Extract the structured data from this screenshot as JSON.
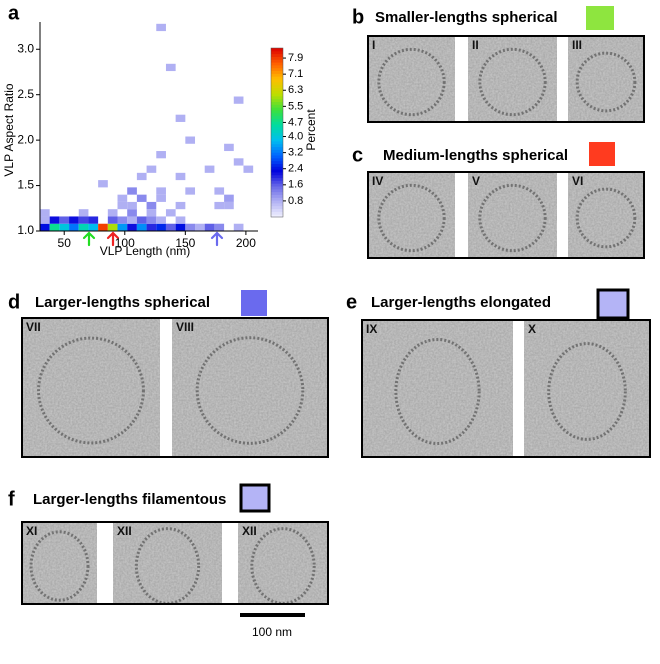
{
  "chart_data": {
    "type": "heatmap",
    "panel_label": "a",
    "xlabel": "VLP Length (nm)",
    "ylabel": "VLP Aspect Ratio",
    "xlim": [
      30,
      210
    ],
    "ylim": [
      1,
      3.3
    ],
    "xticks": [
      50,
      100,
      150,
      200
    ],
    "yticks": [
      {
        "value": 1,
        "label": "1.0"
      },
      {
        "value": 1.5,
        "label": "1.5"
      },
      {
        "value": 2,
        "label": "2.0"
      },
      {
        "value": 2.5,
        "label": "2.5"
      },
      {
        "value": 3,
        "label": "3.0"
      }
    ],
    "colorbar": {
      "label": "Percent",
      "clim": [
        0,
        8.4
      ],
      "ticks": [
        0.8,
        1.6,
        2.4,
        3.2,
        {
          "value": 4,
          "label": "4.0"
        },
        4.7,
        5.5,
        6.3,
        7.1,
        7.9
      ],
      "colors": [
        "#f2f2ff",
        "#b4b4f4",
        "#6a6ae8",
        "#0000dd",
        "#0064ff",
        "#00bef0",
        "#00dca0",
        "#3ce03c",
        "#bede00",
        "#ffbe00",
        "#ff6000",
        "#dd0000"
      ]
    },
    "cells": [
      {
        "x": [
          30,
          38
        ],
        "y": [
          1,
          1.08
        ],
        "value": 2.4
      },
      {
        "x": [
          38,
          46
        ],
        "y": [
          1,
          1.08
        ],
        "value": 4.7
      },
      {
        "x": [
          46,
          54
        ],
        "y": [
          1,
          1.08
        ],
        "value": 4.0
      },
      {
        "x": [
          54,
          62
        ],
        "y": [
          1,
          1.08
        ],
        "value": 3.2
      },
      {
        "x": [
          62,
          70
        ],
        "y": [
          1,
          1.08
        ],
        "value": 4.4
      },
      {
        "x": [
          70,
          78
        ],
        "y": [
          1,
          1.08
        ],
        "value": 3.8
      },
      {
        "x": [
          78,
          86
        ],
        "y": [
          1,
          1.08
        ],
        "value": 7.9
      },
      {
        "x": [
          86,
          94
        ],
        "y": [
          1,
          1.08
        ],
        "value": 6.0
      },
      {
        "x": [
          94,
          102
        ],
        "y": [
          1,
          1.08
        ],
        "value": 3.5
      },
      {
        "x": [
          102,
          110
        ],
        "y": [
          1,
          1.08
        ],
        "value": 2.2
      },
      {
        "x": [
          110,
          118
        ],
        "y": [
          1,
          1.08
        ],
        "value": 3.4
      },
      {
        "x": [
          118,
          126
        ],
        "y": [
          1,
          1.08
        ],
        "value": 2.0
      },
      {
        "x": [
          126,
          134
        ],
        "y": [
          1,
          1.08
        ],
        "value": 2.6
      },
      {
        "x": [
          134,
          142
        ],
        "y": [
          1,
          1.08
        ],
        "value": 1.6
      },
      {
        "x": [
          142,
          150
        ],
        "y": [
          1,
          1.08
        ],
        "value": 2.4
      },
      {
        "x": [
          150,
          158
        ],
        "y": [
          1,
          1.08
        ],
        "value": 1.2
      },
      {
        "x": [
          158,
          166
        ],
        "y": [
          1,
          1.08
        ],
        "value": 0.8
      },
      {
        "x": [
          166,
          174
        ],
        "y": [
          1,
          1.08
        ],
        "value": 1.6
      },
      {
        "x": [
          174,
          182
        ],
        "y": [
          1,
          1.08
        ],
        "value": 1.2
      },
      {
        "x": [
          190,
          198
        ],
        "y": [
          1,
          1.08
        ],
        "value": 0.8
      },
      {
        "x": [
          30,
          38
        ],
        "y": [
          1.08,
          1.16
        ],
        "value": 0.8
      },
      {
        "x": [
          38,
          46
        ],
        "y": [
          1.08,
          1.16
        ],
        "value": 2.2
      },
      {
        "x": [
          46,
          54
        ],
        "y": [
          1.08,
          1.16
        ],
        "value": 1.6
      },
      {
        "x": [
          54,
          62
        ],
        "y": [
          1.08,
          1.16
        ],
        "value": 2.2
      },
      {
        "x": [
          62,
          70
        ],
        "y": [
          1.08,
          1.16
        ],
        "value": 1.8
      },
      {
        "x": [
          70,
          78
        ],
        "y": [
          1.08,
          1.16
        ],
        "value": 2.0
      },
      {
        "x": [
          86,
          94
        ],
        "y": [
          1.08,
          1.16
        ],
        "value": 1.6
      },
      {
        "x": [
          94,
          102
        ],
        "y": [
          1.08,
          1.16
        ],
        "value": 1.2
      },
      {
        "x": [
          102,
          110
        ],
        "y": [
          1.08,
          1.16
        ],
        "value": 0.8
      },
      {
        "x": [
          110,
          118
        ],
        "y": [
          1.08,
          1.16
        ],
        "value": 1.6
      },
      {
        "x": [
          118,
          126
        ],
        "y": [
          1.08,
          1.16
        ],
        "value": 1.2
      },
      {
        "x": [
          126,
          134
        ],
        "y": [
          1.08,
          1.16
        ],
        "value": 0.8
      },
      {
        "x": [
          142,
          150
        ],
        "y": [
          1.08,
          1.16
        ],
        "value": 0.8
      },
      {
        "x": [
          30,
          38
        ],
        "y": [
          1.16,
          1.24
        ],
        "value": 0.8
      },
      {
        "x": [
          62,
          70
        ],
        "y": [
          1.16,
          1.24
        ],
        "value": 0.8
      },
      {
        "x": [
          86,
          94
        ],
        "y": [
          1.16,
          1.24
        ],
        "value": 0.8
      },
      {
        "x": [
          102,
          110
        ],
        "y": [
          1.16,
          1.24
        ],
        "value": 1.2
      },
      {
        "x": [
          118,
          126
        ],
        "y": [
          1.16,
          1.24
        ],
        "value": 0.8
      },
      {
        "x": [
          134,
          142
        ],
        "y": [
          1.16,
          1.24
        ],
        "value": 0.8
      },
      {
        "x": [
          94,
          102
        ],
        "y": [
          1.24,
          1.32
        ],
        "value": 0.8
      },
      {
        "x": [
          102,
          110
        ],
        "y": [
          1.24,
          1.32
        ],
        "value": 0.8
      },
      {
        "x": [
          118,
          126
        ],
        "y": [
          1.24,
          1.32
        ],
        "value": 1.2
      },
      {
        "x": [
          142,
          150
        ],
        "y": [
          1.24,
          1.32
        ],
        "value": 0.8
      },
      {
        "x": [
          174,
          182
        ],
        "y": [
          1.24,
          1.32
        ],
        "value": 0.8
      },
      {
        "x": [
          182,
          190
        ],
        "y": [
          1.24,
          1.32
        ],
        "value": 0.8
      },
      {
        "x": [
          94,
          102
        ],
        "y": [
          1.32,
          1.4
        ],
        "value": 0.8
      },
      {
        "x": [
          110,
          118
        ],
        "y": [
          1.32,
          1.4
        ],
        "value": 1.2
      },
      {
        "x": [
          126,
          134
        ],
        "y": [
          1.32,
          1.4
        ],
        "value": 0.8
      },
      {
        "x": [
          182,
          190
        ],
        "y": [
          1.32,
          1.4
        ],
        "value": 1.0
      },
      {
        "x": [
          102,
          110
        ],
        "y": [
          1.4,
          1.48
        ],
        "value": 1.2
      },
      {
        "x": [
          126,
          134
        ],
        "y": [
          1.4,
          1.48
        ],
        "value": 0.8
      },
      {
        "x": [
          150,
          158
        ],
        "y": [
          1.4,
          1.48
        ],
        "value": 0.8
      },
      {
        "x": [
          174,
          182
        ],
        "y": [
          1.4,
          1.48
        ],
        "value": 0.8
      },
      {
        "x": [
          78,
          86
        ],
        "y": [
          1.48,
          1.56
        ],
        "value": 0.8
      },
      {
        "x": [
          110,
          118
        ],
        "y": [
          1.56,
          1.64
        ],
        "value": 0.8
      },
      {
        "x": [
          142,
          150
        ],
        "y": [
          1.56,
          1.64
        ],
        "value": 0.8
      },
      {
        "x": [
          118,
          126
        ],
        "y": [
          1.64,
          1.72
        ],
        "value": 0.8
      },
      {
        "x": [
          166,
          174
        ],
        "y": [
          1.64,
          1.72
        ],
        "value": 0.8
      },
      {
        "x": [
          198,
          206
        ],
        "y": [
          1.64,
          1.72
        ],
        "value": 0.8
      },
      {
        "x": [
          190,
          198
        ],
        "y": [
          1.72,
          1.8
        ],
        "value": 0.8
      },
      {
        "x": [
          126,
          134
        ],
        "y": [
          1.8,
          1.88
        ],
        "value": 0.8
      },
      {
        "x": [
          182,
          190
        ],
        "y": [
          1.88,
          1.96
        ],
        "value": 0.8
      },
      {
        "x": [
          150,
          158
        ],
        "y": [
          1.96,
          2.04
        ],
        "value": 0.8
      },
      {
        "x": [
          142,
          150
        ],
        "y": [
          2.2,
          2.28
        ],
        "value": 0.8
      },
      {
        "x": [
          190,
          198
        ],
        "y": [
          2.4,
          2.48
        ],
        "value": 0.8
      },
      {
        "x": [
          134,
          142
        ],
        "y": [
          2.76,
          2.84
        ],
        "value": 0.8
      },
      {
        "x": [
          126,
          134
        ],
        "y": [
          3.2,
          3.28
        ],
        "value": 0.8
      }
    ]
  },
  "panels": [
    {
      "label": "b",
      "title": "Smaller-lengths spherical",
      "swatch": "#8ee53f",
      "images": [
        "I",
        "II",
        "III"
      ]
    },
    {
      "label": "c",
      "title": "Medium-lengths spherical",
      "swatch": "#ff3b1f",
      "images": [
        "IV",
        "V",
        "VI"
      ]
    },
    {
      "label": "d",
      "title": "Larger-lengths spherical",
      "swatch": "#6a6aee",
      "images": [
        "VII",
        "VIII"
      ]
    },
    {
      "label": "e",
      "title": "Larger-lengths elongated",
      "swatch": "#b4b4f6",
      "images": [
        "IX",
        "X"
      ]
    },
    {
      "label": "f",
      "title": "Larger-lengths filamentous",
      "swatch": "#b4b4f6",
      "images": [
        "XI",
        "XII",
        "XII"
      ]
    }
  ],
  "scale_bar": "100 nm"
}
